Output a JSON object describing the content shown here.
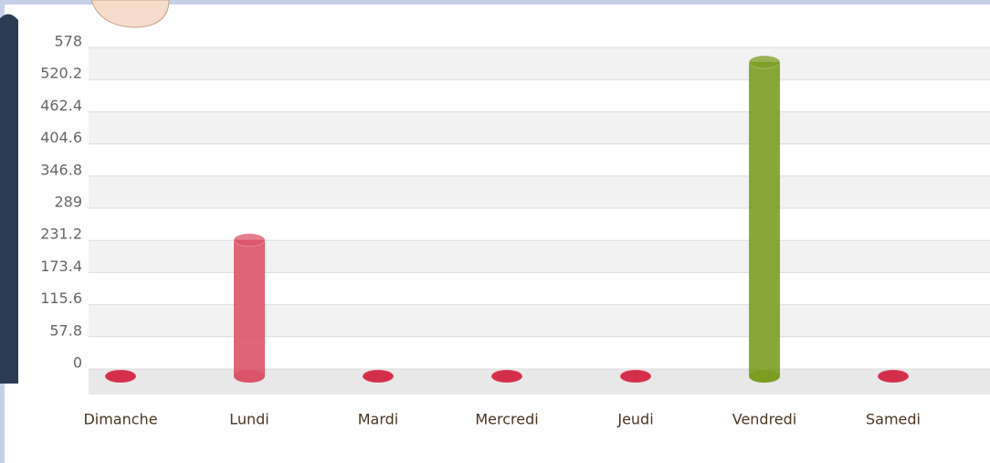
{
  "chart_data": {
    "type": "bar",
    "categories": [
      "Dimanche",
      "Lundi",
      "Mardi",
      "Mercredi",
      "Jeudi",
      "Vendredi",
      "Samedi"
    ],
    "values": [
      0,
      245,
      0,
      0,
      0,
      565,
      0
    ],
    "colors": [
      "#d42f4a",
      "#dc5468",
      "#d42f4a",
      "#d42f4a",
      "#d42f4a",
      "#7a9e22",
      "#d42f4a"
    ],
    "ylim": [
      0,
      578
    ],
    "yticks": [
      0,
      57.8,
      115.6,
      173.4,
      231.2,
      289,
      346.8,
      404.6,
      462.4,
      520.2,
      578
    ],
    "grid": true
  }
}
